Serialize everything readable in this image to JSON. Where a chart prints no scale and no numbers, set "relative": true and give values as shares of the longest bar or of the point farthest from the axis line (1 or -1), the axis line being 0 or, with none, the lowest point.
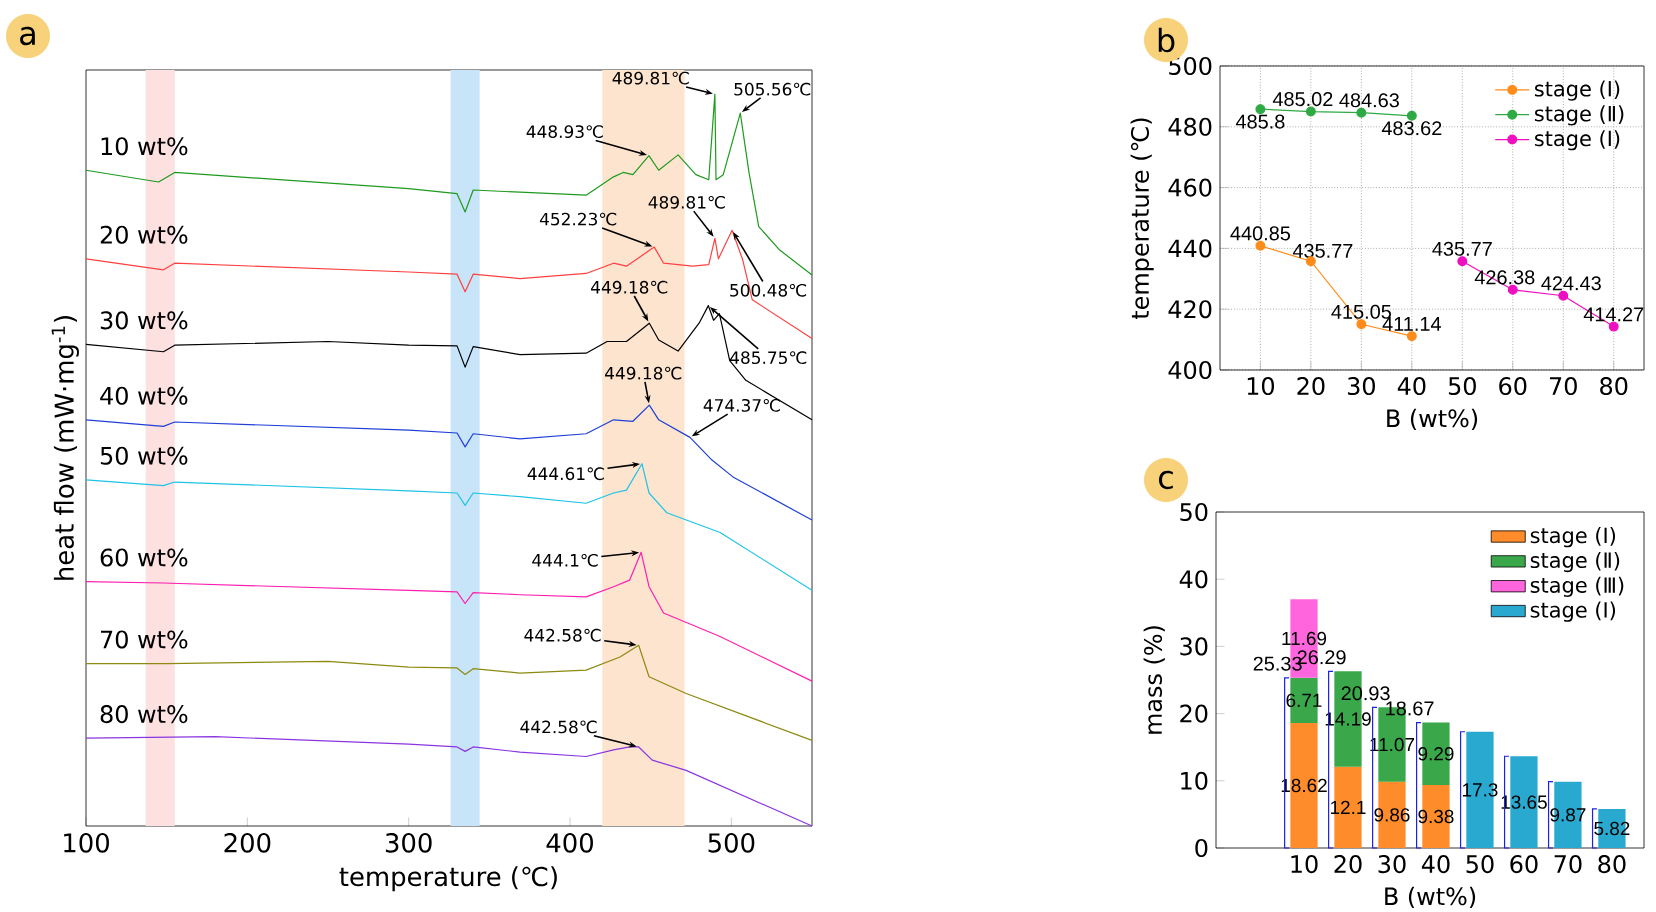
{
  "chart_data": [
    {
      "type": "line",
      "title": "a",
      "xlabel": "temperature (℃)",
      "ylabel": "heat flow (mW·mg$^{-1}$)",
      "relative": true,
      "tick_labels": "x",
      "xlim": [
        100,
        550
      ],
      "xticks": [
        100,
        200,
        300,
        400,
        500
      ],
      "bands": [
        {
          "axis": "x",
          "from": 137,
          "to": 155,
          "color": "#fde0e0"
        },
        {
          "axis": "x",
          "from": 326,
          "to": 344,
          "color": "#c8e4f8"
        },
        {
          "axis": "x",
          "from": 420,
          "to": 471,
          "color": "#fde4cf"
        }
      ],
      "annotations": [
        {
          "text": "448.93℃",
          "x": 448.93,
          "y": 0.916
        },
        {
          "text": "489.81℃",
          "x": 489.81,
          "y": 1.0
        },
        {
          "text": "505.56℃",
          "x": 505.56,
          "y": 0.974
        },
        {
          "text": "452.23℃",
          "x": 452.23,
          "y": 0.791
        },
        {
          "text": "489.81℃",
          "x": 489.81,
          "y": 0.803
        },
        {
          "text": "500.48℃",
          "x": 500.48,
          "y": 0.814
        },
        {
          "text": "449.18℃",
          "x": 449.18,
          "y": 0.687
        },
        {
          "text": "485.75℃",
          "x": 485.75,
          "y": 0.711
        },
        {
          "text": "449.18℃",
          "x": 449.18,
          "y": 0.575
        },
        {
          "text": "474.37℃",
          "x": 474.37,
          "y": 0.531
        },
        {
          "text": "444.61℃",
          "x": 444.61,
          "y": 0.495
        },
        {
          "text": "444.1℃",
          "x": 444.1,
          "y": 0.374
        },
        {
          "text": "442.58℃",
          "x": 442.58,
          "y": 0.247
        },
        {
          "text": "442.58℃",
          "x": 442.58,
          "y": 0.108
        }
      ],
      "series": [
        {
          "name": "10 wt%",
          "color": "#1e9a1e",
          "x": [
            100,
            145,
            155,
            300,
            330,
            335,
            340,
            369,
            410,
            427,
            433,
            439,
            448.93,
            455,
            467,
            478,
            486,
            489.81,
            490.5,
            495,
            505.56,
            511,
            517,
            530,
            550
          ],
          "values": [
            0.896,
            0.88,
            0.893,
            0.871,
            0.864,
            0.839,
            0.869,
            0.866,
            0.862,
            0.887,
            0.893,
            0.89,
            0.916,
            0.896,
            0.917,
            0.89,
            0.883,
            1.0,
            0.883,
            0.89,
            0.974,
            0.892,
            0.819,
            0.787,
            0.753
          ]
        },
        {
          "name": "20 wt%",
          "color": "#ff4040",
          "x": [
            100,
            148,
            155,
            300,
            330,
            335,
            340,
            369,
            410,
            427,
            435,
            452.23,
            458,
            476,
            486,
            489.81,
            492,
            500.48,
            507,
            513,
            550
          ],
          "values": [
            0.775,
            0.76,
            0.769,
            0.757,
            0.754,
            0.73,
            0.754,
            0.748,
            0.755,
            0.769,
            0.765,
            0.791,
            0.769,
            0.765,
            0.767,
            0.803,
            0.775,
            0.814,
            0.774,
            0.719,
            0.666
          ]
        },
        {
          "name": "30 wt%",
          "color": "#000000",
          "x": [
            100,
            148,
            155,
            250,
            300,
            330,
            335,
            340,
            369,
            410,
            423,
            435,
            449.18,
            455,
            467,
            480,
            485.75,
            489,
            492.6,
            499,
            509,
            550
          ],
          "values": [
            0.658,
            0.648,
            0.657,
            0.662,
            0.657,
            0.656,
            0.627,
            0.655,
            0.644,
            0.646,
            0.662,
            0.662,
            0.687,
            0.664,
            0.649,
            0.687,
            0.711,
            0.691,
            0.7,
            0.636,
            0.609,
            0.555
          ]
        },
        {
          "name": "40 wt%",
          "color": "#1f3fd6",
          "x": [
            100,
            148,
            155,
            300,
            330,
            335,
            340,
            369,
            410,
            427,
            439,
            449.18,
            455,
            474.37,
            488,
            501,
            550
          ],
          "values": [
            0.555,
            0.546,
            0.552,
            0.541,
            0.537,
            0.518,
            0.536,
            0.529,
            0.536,
            0.555,
            0.553,
            0.575,
            0.555,
            0.531,
            0.5,
            0.477,
            0.418
          ]
        },
        {
          "name": "50 wt%",
          "color": "#1ec3e6",
          "x": [
            100,
            148,
            155,
            300,
            330,
            335,
            340,
            369,
            410,
            427,
            435,
            444.61,
            449,
            460,
            493,
            550
          ],
          "values": [
            0.473,
            0.465,
            0.47,
            0.458,
            0.455,
            0.438,
            0.455,
            0.45,
            0.441,
            0.455,
            0.459,
            0.495,
            0.455,
            0.428,
            0.401,
            0.322
          ]
        },
        {
          "name": "60 wt%",
          "color": "#ff1fb0",
          "x": [
            100,
            148,
            300,
            330,
            335,
            340,
            369,
            410,
            427,
            437,
            444.1,
            449,
            458,
            493,
            550
          ],
          "values": [
            0.334,
            0.332,
            0.322,
            0.32,
            0.304,
            0.319,
            0.316,
            0.313,
            0.327,
            0.336,
            0.374,
            0.327,
            0.291,
            0.259,
            0.198
          ]
        },
        {
          "name": "70 wt%",
          "color": "#8c8a10",
          "x": [
            100,
            150,
            250,
            300,
            330,
            335,
            340,
            369,
            410,
            431,
            442.58,
            449,
            472,
            550
          ],
          "values": [
            0.222,
            0.222,
            0.225,
            0.217,
            0.216,
            0.207,
            0.215,
            0.209,
            0.213,
            0.231,
            0.247,
            0.204,
            0.181,
            0.117
          ]
        },
        {
          "name": "80 wt%",
          "color": "#8a35e0",
          "x": [
            100,
            180,
            300,
            330,
            335,
            340,
            369,
            410,
            427,
            437,
            442.58,
            451,
            472,
            550
          ],
          "values": [
            0.12,
            0.122,
            0.112,
            0.108,
            0.102,
            0.108,
            0.101,
            0.095,
            0.104,
            0.108,
            0.108,
            0.09,
            0.076,
            0.0
          ]
        }
      ]
    },
    {
      "type": "line",
      "title": "b",
      "xlabel": "B (wt%)",
      "ylabel": "temperature (℃)",
      "xlim": [
        2,
        86
      ],
      "xticks": [
        10,
        20,
        30,
        40,
        50,
        60,
        70,
        80
      ],
      "ylim": [
        400,
        500
      ],
      "yticks": [
        400,
        420,
        440,
        460,
        480,
        500
      ],
      "grid": true,
      "legend": "top right",
      "marker": "circle",
      "data_labels": true,
      "series": [
        {
          "name": "stage (Ⅰ)",
          "color": "#ff8c1a",
          "x": [
            10,
            20,
            30,
            40
          ],
          "values": [
            440.85,
            435.77,
            415.05,
            411.14
          ]
        },
        {
          "name": "stage (Ⅱ)",
          "color": "#2eaa44",
          "x": [
            10,
            20,
            30,
            40
          ],
          "values": [
            485.8,
            485.02,
            484.63,
            483.62
          ]
        },
        {
          "name": "stage (Ⅰ)",
          "color": "#ee10c0",
          "x": [
            50,
            60,
            70,
            80
          ],
          "values": [
            435.77,
            426.38,
            424.43,
            414.27
          ]
        }
      ]
    },
    {
      "type": "bar",
      "title": "c",
      "xlabel": "B (wt%)",
      "ylabel": "mass (%)",
      "categories": [
        "10",
        "20",
        "30",
        "40",
        "50",
        "60",
        "70",
        "80"
      ],
      "ylim": [
        0,
        50
      ],
      "yticks": [
        0,
        10,
        20,
        30,
        40,
        50
      ],
      "stacked": true,
      "legend": "top right",
      "data_labels": true,
      "annotations": [
        {
          "text": "25.33",
          "x": "10",
          "y": 25.33
        },
        {
          "text": "26.29",
          "x": "20",
          "y": 26.29
        },
        {
          "text": "20.93",
          "x": "30",
          "y": 20.93
        },
        {
          "text": "18.67",
          "x": "40",
          "y": 18.67
        }
      ],
      "series": [
        {
          "name": "stage (Ⅰ)",
          "color": "#ff8c2a",
          "values": [
            18.62,
            12.1,
            9.86,
            9.38,
            null,
            null,
            null,
            null
          ]
        },
        {
          "name": "stage (Ⅱ)",
          "color": "#3aa84a",
          "values": [
            6.71,
            14.19,
            11.07,
            9.29,
            null,
            null,
            null,
            null
          ]
        },
        {
          "name": "stage (Ⅲ)",
          "color": "#ff66dd",
          "values": [
            11.69,
            null,
            null,
            null,
            null,
            null,
            null,
            null
          ]
        },
        {
          "name": "stage (Ⅰ)",
          "color": "#29a9cf",
          "values": [
            null,
            null,
            null,
            null,
            17.3,
            13.65,
            9.87,
            5.82
          ]
        }
      ]
    }
  ]
}
